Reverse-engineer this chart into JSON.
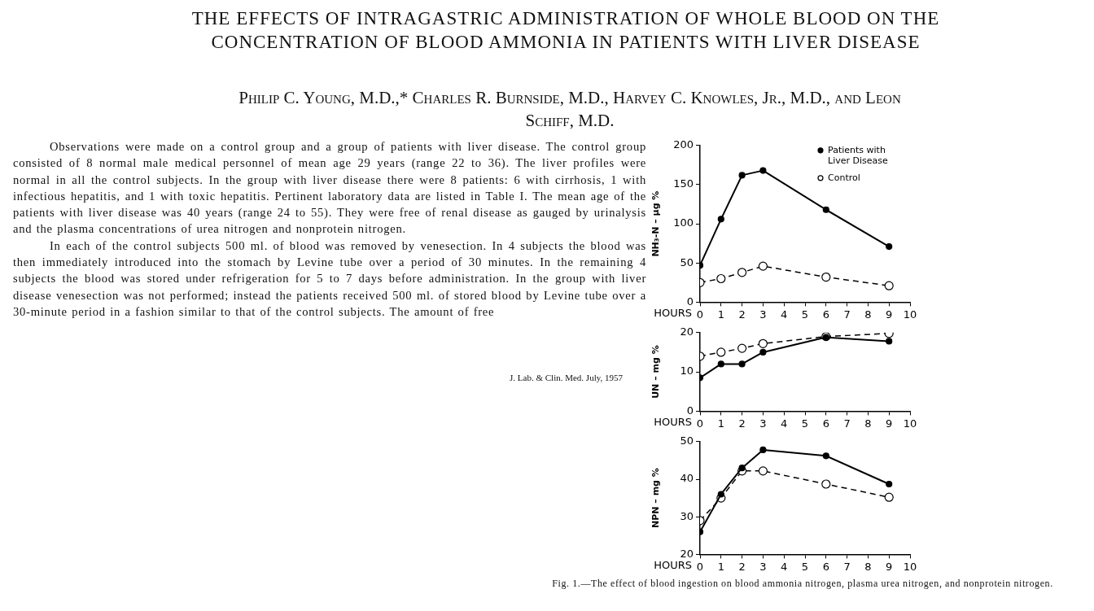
{
  "chart_data": [
    {
      "type": "line",
      "title": "THE EFFECTS OF INTRAGASTRIC ADMINISTRATION OF WHOLE BLOOD ON THE CONCENTRATION OF BLOOD AMMONIA IN PATIENTS WITH LIVER DISEASE",
      "subtitle": "Philip C. Young, M.D.,* Charles R. Burnside, M.D., Harvey C. Knowles, Jr., M.D., and Leon Schiff, M.D.",
      "annotations": [
        "Observations were made on a control group and a group of patients with liver disease. The control group consisted of 8 normal male medical personnel of mean age 29 years (range 22 to 36). The liver profiles were normal in all the control subjects. In the group with liver disease there were 8 patients: 6 with cirrhosis, 1 with infectious hepatitis, and 1 with toxic hepatitis. Pertinent laboratory data are listed in Table I. The mean age of the patients with liver disease was 40 years (range 24 to 55). They were free of renal disease as gauged by urinalysis and the plasma concentrations of urea nitrogen and nonprotein nitrogen.",
        "In each of the control subjects 500 ml. of blood was removed by venesection. In 4 subjects the blood was then immediately introduced into the stomach by Levine tube over a period of 30 minutes. In the remaining 4 subjects the blood was stored under refrigeration for 5 to 7 days before administration. In the group with liver disease venesection was not performed; instead the patients received 500 ml. of stored blood by Levine tube over a 30-minute period in a fashion similar to that of the control subjects. The amount of free",
        "J. Lab. & Clin. Med. July, 1957"
      ],
      "xlabel": "HOURS",
      "ylabel": "NH₃-N – μg %",
      "x": [
        0,
        1,
        2,
        3,
        6,
        9
      ],
      "series": [
        {
          "name": "Patients with Liver Disease",
          "color": "#000000",
          "values": [
            47,
            106,
            162,
            168,
            118,
            71
          ],
          "line_style": "solid"
        },
        {
          "name": "Control",
          "color": "#000000",
          "values": [
            25,
            30,
            38,
            46,
            32,
            21
          ],
          "line_style": "dashed"
        }
      ],
      "xlim": [
        0,
        10
      ],
      "xticks": [
        0,
        1,
        2,
        3,
        4,
        5,
        6,
        7,
        8,
        9,
        10
      ],
      "ylim": [
        0,
        200
      ],
      "yticks": [
        0,
        50,
        100,
        150,
        200
      ],
      "grid": false,
      "legend": "top right",
      "marker": "circle"
    },
    {
      "type": "line",
      "xlabel": "HOURS",
      "ylabel": "UN – mg %",
      "x": [
        0,
        1,
        2,
        3,
        6,
        9
      ],
      "series": [
        {
          "color": "#000000",
          "values": [
            8.5,
            12,
            12,
            15,
            18.8,
            17.8
          ],
          "line_style": "solid"
        },
        {
          "color": "#000000",
          "values": [
            14,
            15,
            16,
            17.2,
            19,
            19.8
          ],
          "line_style": "dashed"
        }
      ],
      "xlim": [
        0,
        10
      ],
      "xticks": [
        0,
        1,
        2,
        3,
        4,
        5,
        6,
        7,
        8,
        9,
        10
      ],
      "ylim": [
        0,
        20
      ],
      "yticks": [
        0,
        10,
        20
      ],
      "grid": false,
      "marker": "circle"
    },
    {
      "type": "line",
      "xlabel": "HOURS",
      "ylabel": "NPN – mg %",
      "x": [
        0,
        1,
        2,
        3,
        6,
        9
      ],
      "annotations": [
        "Fig. 1.—The effect of blood ingestion on blood ammonia nitrogen, plasma urea nitrogen, and nonprotein nitrogen."
      ],
      "series": [
        {
          "color": "#000000",
          "values": [
            26,
            36,
            43,
            47.8,
            46.2,
            38.7
          ],
          "line_style": "solid"
        },
        {
          "color": "#000000",
          "values": [
            29,
            35,
            42.2,
            42.2,
            38.7,
            35.2
          ],
          "line_style": "dashed"
        }
      ],
      "xlim": [
        0,
        10
      ],
      "xticks": [
        0,
        1,
        2,
        3,
        4,
        5,
        6,
        7,
        8,
        9,
        10
      ],
      "ylim": [
        20,
        50
      ],
      "yticks": [
        20,
        30,
        40,
        50
      ],
      "grid": false,
      "marker": "circle"
    }
  ]
}
